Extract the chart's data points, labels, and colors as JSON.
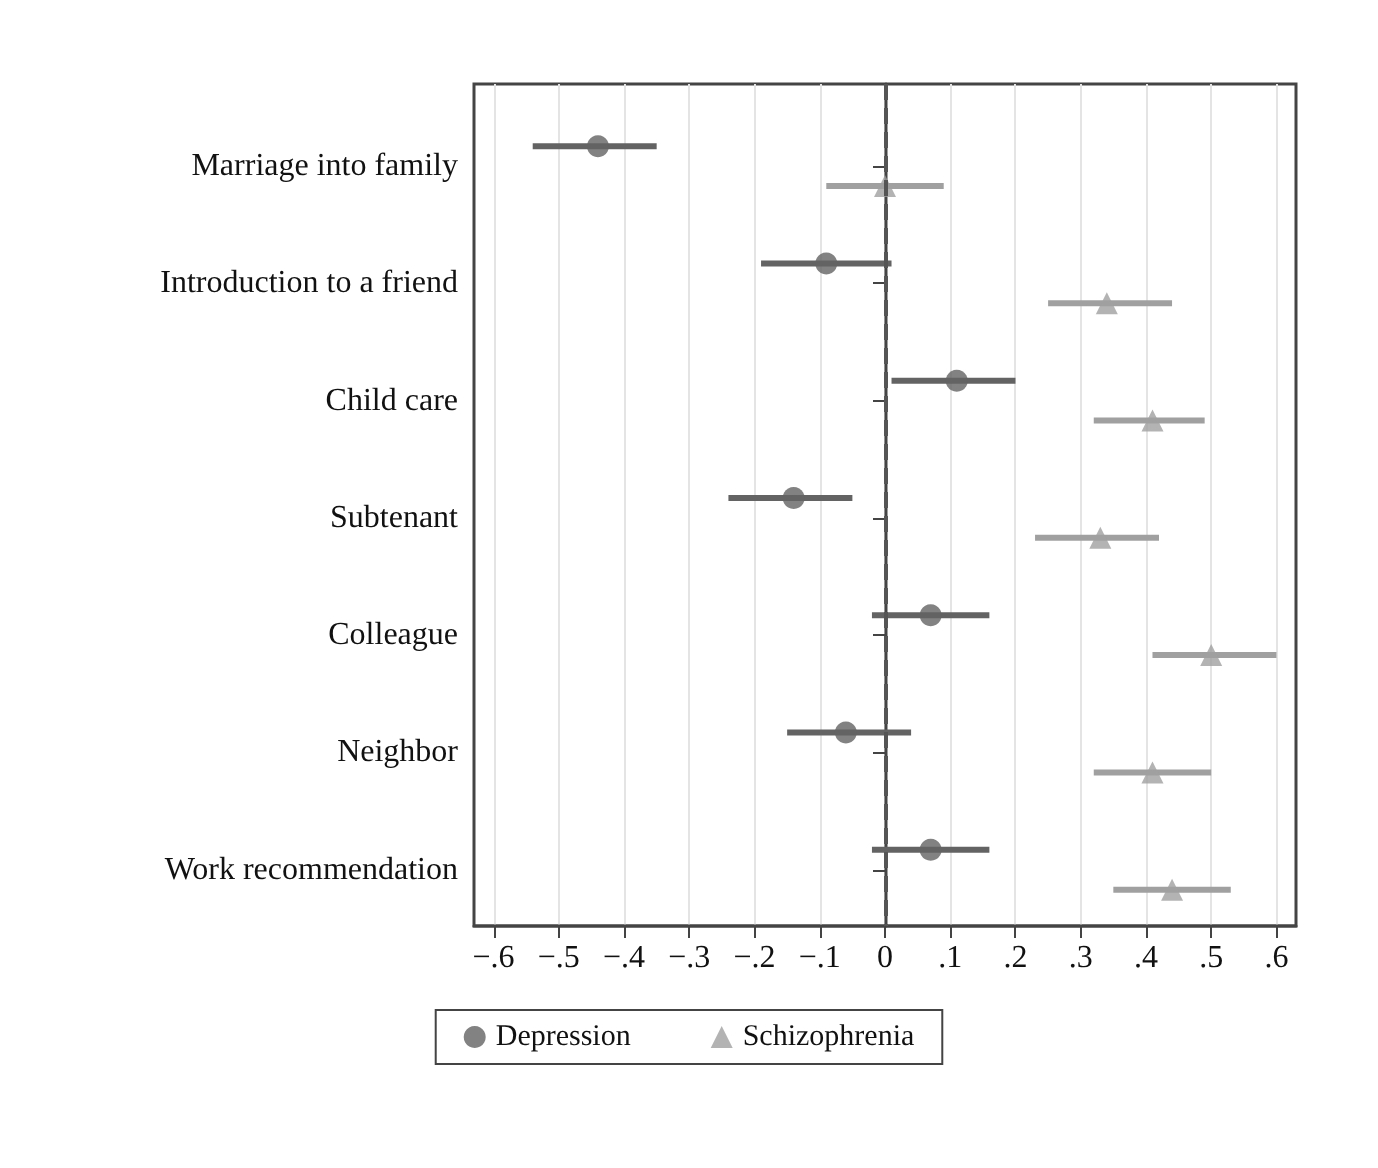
{
  "chart_data": {
    "type": "scatter",
    "orientation": "horizontal",
    "categories": [
      "Marriage into family",
      "Introduction to a friend",
      "Child care",
      "Subtenant",
      "Colleague",
      "Neighbor",
      "Work recommendation"
    ],
    "series": [
      {
        "name": "Depression",
        "color": "#636363",
        "marker": "circle",
        "values": [
          -0.44,
          -0.09,
          0.11,
          -0.14,
          0.07,
          -0.06,
          0.07
        ],
        "errors": [
          [
            -0.54,
            -0.35
          ],
          [
            -0.19,
            0.01
          ],
          [
            0.01,
            0.2
          ],
          [
            -0.24,
            -0.05
          ],
          [
            -0.02,
            0.16
          ],
          [
            -0.15,
            0.04
          ],
          [
            -0.02,
            0.16
          ]
        ]
      },
      {
        "name": "Schizophrenia",
        "color": "#a0a0a0",
        "marker": "triangle",
        "values": [
          0.0,
          0.34,
          0.41,
          0.33,
          0.5,
          0.41,
          0.44
        ],
        "errors": [
          [
            -0.09,
            0.09
          ],
          [
            0.25,
            0.44
          ],
          [
            0.32,
            0.49
          ],
          [
            0.23,
            0.42
          ],
          [
            0.41,
            0.6
          ],
          [
            0.32,
            0.5
          ],
          [
            0.35,
            0.53
          ]
        ]
      }
    ],
    "xlim": [
      -0.63,
      0.63
    ],
    "xticks": [
      {
        "value": -0.6,
        "label": "−.6"
      },
      {
        "value": -0.5,
        "label": "−.5"
      },
      {
        "value": -0.4,
        "label": "−.4"
      },
      {
        "value": -0.3,
        "label": "−.3"
      },
      {
        "value": -0.2,
        "label": "−.2"
      },
      {
        "value": -0.1,
        "label": "−.1"
      },
      {
        "value": 0,
        "label": "0"
      },
      {
        "value": 0.1,
        "label": ".1"
      },
      {
        "value": 0.2,
        "label": ".2"
      },
      {
        "value": 0.3,
        "label": ".3"
      },
      {
        "value": 0.4,
        "label": ".4"
      },
      {
        "value": 0.5,
        "label": ".5"
      },
      {
        "value": 0.6,
        "label": ".6"
      }
    ],
    "ref_lines": [
      {
        "axis": "x",
        "value": 0,
        "color": "#555555",
        "line_style": "dashed"
      }
    ],
    "grid": "x",
    "legend": "bottom"
  }
}
